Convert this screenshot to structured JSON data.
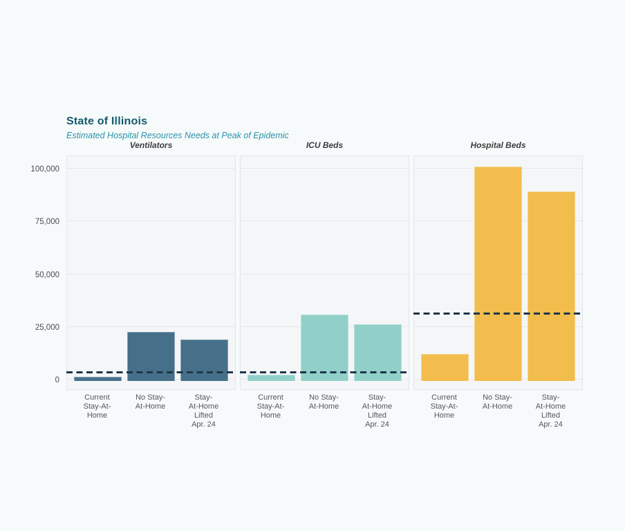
{
  "header": {
    "title": "State of Illinois",
    "subtitle": "Estimated Hospital Resources Needs at Peak of Epidemic",
    "title_color": "#16596b",
    "subtitle_color": "#2b93a8"
  },
  "chart_data": {
    "type": "bar",
    "title": "State of Illinois",
    "subtitle": "Estimated Hospital Resources Needs at Peak of Epidemic",
    "categories": [
      "Current Stay-At-Home",
      "No Stay-At-Home",
      "Stay-At-Home Lifted Apr. 24"
    ],
    "category_label_lines": [
      [
        "Current",
        "Stay-At-",
        "Home"
      ],
      [
        "No Stay-",
        "At-Home"
      ],
      [
        "Stay-",
        "At-Home",
        "Lifted",
        "Apr. 24"
      ]
    ],
    "panels": [
      {
        "title": "Ventilators",
        "bar_color": "#46708a",
        "values": [
          1300,
          22500,
          19000
        ],
        "dashed_line_value": 3400
      },
      {
        "title": "ICU Beds",
        "bar_color": "#90d0c9",
        "values": [
          2300,
          30700,
          26200
        ],
        "dashed_line_value": 3400
      },
      {
        "title": "Hospital Beds",
        "bar_color": "#f2bd4d",
        "values": [
          12000,
          101000,
          89200
        ],
        "dashed_line_value": 31400
      }
    ],
    "y_ticks": [
      0,
      25000,
      50000,
      75000,
      100000
    ],
    "y_tick_labels": [
      "0",
      "25,000",
      "50,000",
      "75,000",
      "100,000"
    ],
    "ylim": [
      0,
      106500
    ],
    "grid": true,
    "legend": "none",
    "dashed_line_color": "#1d3648",
    "dashed_line_style": "dashed"
  },
  "colors": {
    "page_bg": "#f6fafb",
    "panel_bg": "#f5f6f8",
    "panel_border": "#e4e5e9",
    "gridline": "#e6e7ea",
    "axis_text": "#4b4b4b",
    "x_label_text": "#565656",
    "panel_title_text": "#3c3c3c"
  }
}
